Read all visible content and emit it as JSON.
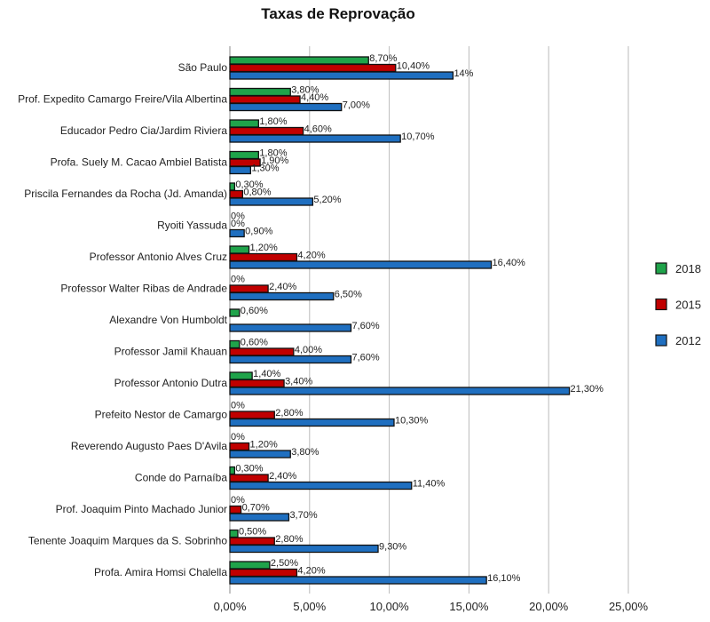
{
  "chart_data": {
    "type": "bar",
    "orientation": "horizontal",
    "title": "Taxas de Reprovação",
    "xlabel": "",
    "ylabel": "",
    "xlim": [
      0,
      25
    ],
    "x_ticks": [
      "0,00%",
      "5,00%",
      "10,00%",
      "15,00%",
      "20,00%",
      "25,00%"
    ],
    "grid": true,
    "legend_position": "right",
    "categories": [
      "São Paulo",
      "Prof. Expedito  Camargo Freire/Vila Albertina",
      "Educador Pedro Cia/Jardim Riviera",
      "Profa. Suely M. Cacao Ambiel Batista",
      "Priscila Fernandes da Rocha (Jd. Amanda)",
      "Ryoiti Yassuda",
      "Professor Antonio Alves Cruz",
      "Professor Walter Ribas de Andrade",
      "Alexandre Von Humboldt",
      "Professor Jamil Khauan",
      "Professor Antonio Dutra",
      "Prefeito Nestor de Camargo",
      "Reverendo Augusto Paes D'Avila",
      "Conde do Parnaíba",
      "Prof. Joaquim Pinto Machado Junior",
      "Tenente Joaquim Marques da S. Sobrinho",
      "Profa. Amira Homsi Chalella"
    ],
    "series": [
      {
        "name": "2018",
        "color": "#1fa34a",
        "values": [
          8.7,
          3.8,
          1.8,
          1.8,
          0.3,
          0,
          1.2,
          0,
          0.6,
          0.6,
          1.4,
          0,
          0,
          0.3,
          0,
          0.5,
          2.5
        ],
        "labels": [
          "8,70%",
          "3,80%",
          "1,80%",
          "1,80%",
          "0,30%",
          "0%",
          "1,20%",
          "0%",
          "0,60%",
          "0,60%",
          "1,40%",
          "0%",
          "0%",
          "0,30%",
          "0%",
          "0,50%",
          "2,50%"
        ]
      },
      {
        "name": "2015",
        "color": "#c00000",
        "values": [
          10.4,
          4.4,
          4.6,
          1.9,
          0.8,
          0,
          4.2,
          2.4,
          null,
          4.0,
          3.4,
          2.8,
          1.2,
          2.4,
          0.7,
          2.8,
          4.2
        ],
        "labels": [
          "10,40%",
          "4,40%",
          "4,60%",
          "1,90%",
          "0,80%",
          "0%",
          "4,20%",
          "2,40%",
          null,
          "4,00%",
          "3,40%",
          "2,80%",
          "1,20%",
          "2,40%",
          "0,70%",
          "2,80%",
          "4,20%"
        ]
      },
      {
        "name": "2012",
        "color": "#1f6fc0",
        "values": [
          14,
          7.0,
          10.7,
          1.3,
          5.2,
          0.9,
          16.4,
          6.5,
          7.6,
          7.6,
          21.3,
          10.3,
          3.8,
          11.4,
          3.7,
          9.3,
          16.1
        ],
        "labels": [
          "14%",
          "7,00%",
          "10,70%",
          "1,30%",
          "5,20%",
          "0,90%",
          "16,40%",
          "6,50%",
          "7,60%",
          "7,60%",
          "21,30%",
          "10,30%",
          "3,80%",
          "11,40%",
          "3,70%",
          "9,30%",
          "16,10%"
        ]
      }
    ]
  }
}
